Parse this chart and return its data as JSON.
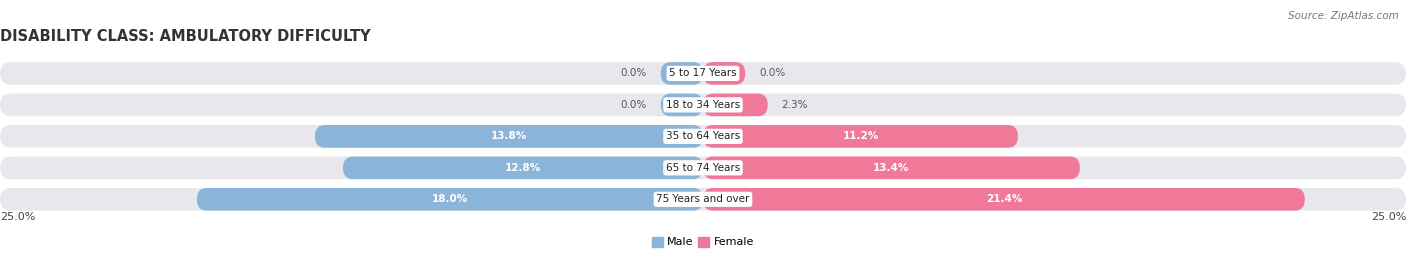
{
  "title": "DISABILITY CLASS: AMBULATORY DIFFICULTY",
  "source": "Source: ZipAtlas.com",
  "categories": [
    "5 to 17 Years",
    "18 to 34 Years",
    "35 to 64 Years",
    "65 to 74 Years",
    "75 Years and over"
  ],
  "male_values": [
    0.0,
    0.0,
    13.8,
    12.8,
    18.0
  ],
  "female_values": [
    0.0,
    2.3,
    11.2,
    13.4,
    21.4
  ],
  "max_val": 25.0,
  "male_color": "#8ab4d8",
  "female_color": "#f07898",
  "row_bg_color": "#e8e8ec",
  "row_bg_color2": "#d8d8e0",
  "label_color_inside": "#ffffff",
  "label_color_outside": "#555555",
  "title_fontsize": 10.5,
  "source_fontsize": 7.5,
  "label_fontsize": 7.5,
  "category_fontsize": 7.5,
  "axis_label_fontsize": 8,
  "bar_height": 0.72,
  "small_stub": 1.5
}
